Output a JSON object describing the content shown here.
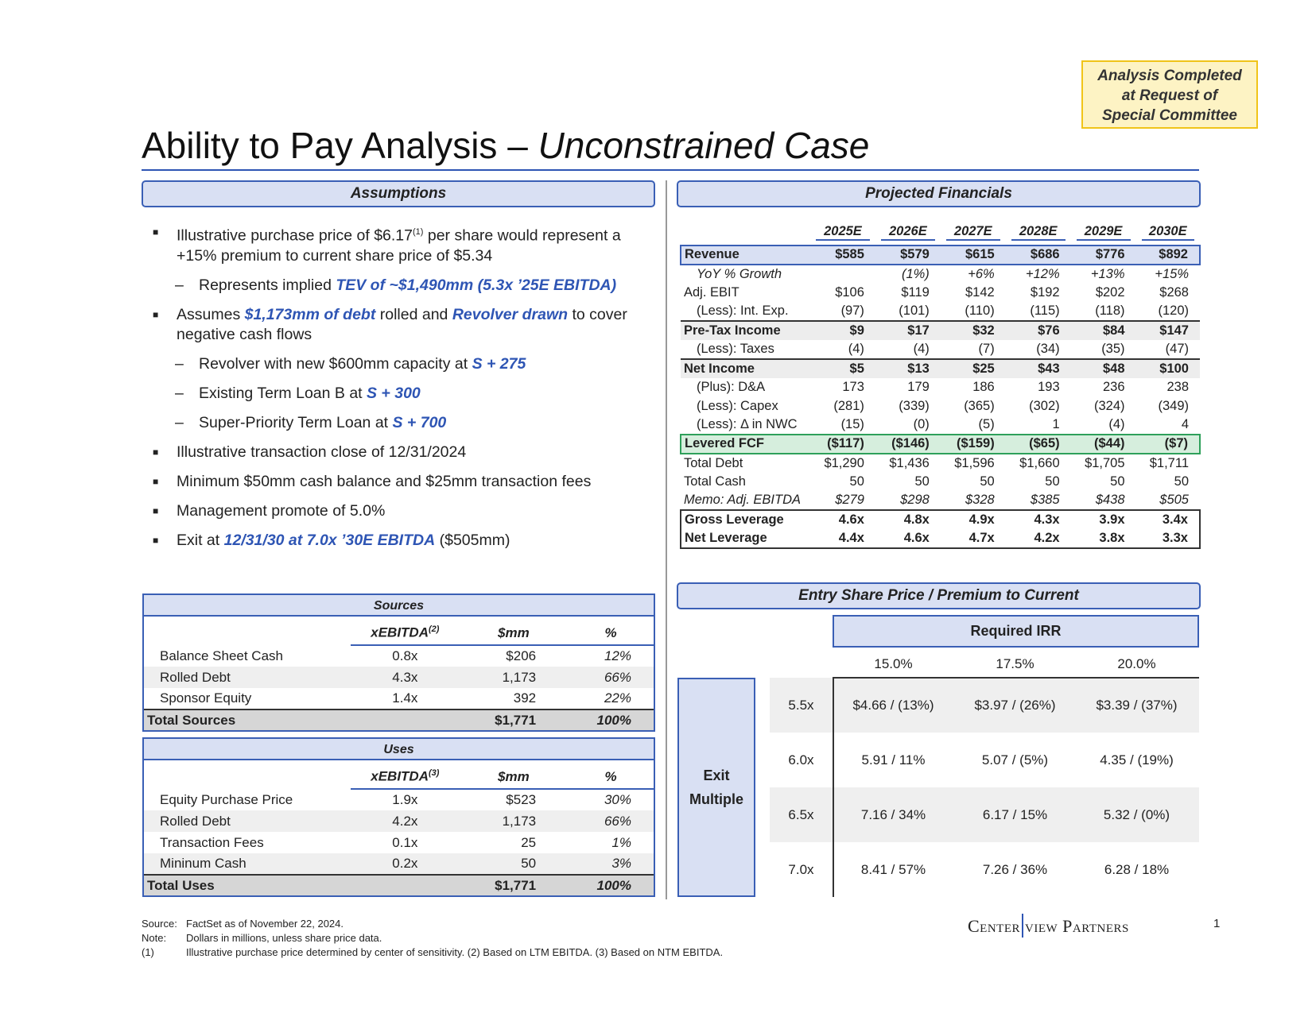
{
  "badge": {
    "line1": "Analysis Completed",
    "line2": "at Request of",
    "line3": "Special Committee"
  },
  "title": {
    "main": "Ability to Pay Analysis – ",
    "italic": "Unconstrained Case"
  },
  "assumptions": {
    "header": "Assumptions",
    "bullets": [
      {
        "level": 1,
        "segs": [
          {
            "t": "Illustrative purchase price of $6.17"
          },
          {
            "t": "(1)",
            "sup": true
          },
          {
            "t": " per share would represent a +15% premium to current share price of $5.34"
          }
        ]
      },
      {
        "level": 2,
        "segs": [
          {
            "t": "Represents implied "
          },
          {
            "t": "TEV of ~$1,490mm (5.3x ’25E EBITDA)",
            "hl": true
          }
        ]
      },
      {
        "level": 1,
        "segs": [
          {
            "t": "Assumes "
          },
          {
            "t": "$1,173mm of debt",
            "hl": true
          },
          {
            "t": " rolled and "
          },
          {
            "t": "Revolver drawn",
            "hl": true
          },
          {
            "t": " to cover negative cash flows"
          }
        ]
      },
      {
        "level": 2,
        "segs": [
          {
            "t": "Revolver with new $600mm capacity at "
          },
          {
            "t": "S + 275",
            "hl": true
          }
        ]
      },
      {
        "level": 2,
        "segs": [
          {
            "t": "Existing Term Loan B at "
          },
          {
            "t": "S + 300",
            "hl": true
          }
        ]
      },
      {
        "level": 2,
        "segs": [
          {
            "t": "Super-Priority Term Loan at "
          },
          {
            "t": "S + 700",
            "hl": true
          }
        ]
      },
      {
        "level": 1,
        "segs": [
          {
            "t": "Illustrative transaction close of 12/31/2024"
          }
        ]
      },
      {
        "level": 1,
        "segs": [
          {
            "t": "Minimum $50mm cash balance and $25mm transaction fees"
          }
        ]
      },
      {
        "level": 1,
        "segs": [
          {
            "t": "Management promote of 5.0%"
          }
        ]
      },
      {
        "level": 1,
        "segs": [
          {
            "t": "Exit at "
          },
          {
            "t": "12/31/30 at 7.0x ’30E EBITDA",
            "hl": true
          },
          {
            "t": " ($505mm)"
          }
        ]
      }
    ]
  },
  "sources": {
    "caption": "Sources",
    "col1": "xEBITDA",
    "col1_note": "(2)",
    "col2": "$mm",
    "col3": "%",
    "rows": [
      [
        "Balance Sheet Cash",
        "0.8x",
        "$206",
        "12%"
      ],
      [
        "Rolled Debt",
        "4.3x",
        "1,173",
        "66%"
      ],
      [
        "Sponsor Equity",
        "1.4x",
        "392",
        "22%"
      ]
    ],
    "total": [
      "Total Sources",
      "",
      "$1,771",
      "100%"
    ]
  },
  "uses": {
    "caption": "Uses",
    "col1": "xEBITDA",
    "col1_note": "(3)",
    "col2": "$mm",
    "col3": "%",
    "rows": [
      [
        "Equity Purchase Price",
        "1.9x",
        "$523",
        "30%"
      ],
      [
        "Rolled Debt",
        "4.2x",
        "1,173",
        "66%"
      ],
      [
        "Transaction Fees",
        "0.1x",
        "25",
        "1%"
      ],
      [
        "Mininum Cash",
        "0.2x",
        "50",
        "3%"
      ]
    ],
    "total": [
      "Total Uses",
      "",
      "$1,771",
      "100%"
    ]
  },
  "projected": {
    "header": "Projected Financials",
    "years": [
      "2025E",
      "2026E",
      "2027E",
      "2028E",
      "2029E",
      "2030E"
    ],
    "rows": [
      {
        "style": "rev",
        "label": "Revenue",
        "v": [
          "$585",
          "$579",
          "$615",
          "$686",
          "$776",
          "$892"
        ]
      },
      {
        "style": "it ind",
        "label": "YoY % Growth",
        "v": [
          "",
          "(1%)",
          "+6%",
          "+12%",
          "+13%",
          "+15%"
        ]
      },
      {
        "style": "",
        "label": "Adj. EBIT",
        "v": [
          "$106",
          "$119",
          "$142",
          "$192",
          "$202",
          "$268"
        ]
      },
      {
        "style": "ind",
        "label": "(Less): Int. Exp.",
        "v": [
          "(97)",
          "(101)",
          "(110)",
          "(115)",
          "(118)",
          "(120)"
        ]
      },
      {
        "style": "gry",
        "label": "Pre-Tax Income",
        "v": [
          "$9",
          "$17",
          "$32",
          "$76",
          "$84",
          "$147"
        ]
      },
      {
        "style": "ind",
        "label": "(Less): Taxes",
        "v": [
          "(4)",
          "(4)",
          "(7)",
          "(34)",
          "(35)",
          "(47)"
        ]
      },
      {
        "style": "gry",
        "label": "Net Income",
        "v": [
          "$5",
          "$13",
          "$25",
          "$43",
          "$48",
          "$100"
        ]
      },
      {
        "style": "ind",
        "label": "(Plus): D&A",
        "v": [
          "173",
          "179",
          "186",
          "193",
          "236",
          "238"
        ]
      },
      {
        "style": "ind",
        "label": "(Less): Capex",
        "v": [
          "(281)",
          "(339)",
          "(365)",
          "(302)",
          "(324)",
          "(349)"
        ]
      },
      {
        "style": "ind",
        "label": "(Less): Δ in NWC",
        "v": [
          "(15)",
          "(0)",
          "(5)",
          "1",
          "(4)",
          "4"
        ]
      },
      {
        "style": "fcf",
        "label": "Levered FCF",
        "v": [
          "($117)",
          "($146)",
          "($159)",
          "($65)",
          "($44)",
          "($7)"
        ]
      },
      {
        "style": "",
        "label": "Total Debt",
        "v": [
          "$1,290",
          "$1,436",
          "$1,596",
          "$1,660",
          "$1,705",
          "$1,711"
        ]
      },
      {
        "style": "",
        "label": "Total Cash",
        "v": [
          "50",
          "50",
          "50",
          "50",
          "50",
          "50"
        ]
      },
      {
        "style": "it",
        "label": "Memo: Adj. EBITDA",
        "v": [
          "$279",
          "$298",
          "$328",
          "$385",
          "$438",
          "$505"
        ]
      },
      {
        "style": "lev lev1",
        "label": "Gross Leverage",
        "v": [
          "4.6x",
          "4.8x",
          "4.9x",
          "4.3x",
          "3.9x",
          "3.4x"
        ]
      },
      {
        "style": "lev lev2",
        "label": "Net Leverage",
        "v": [
          "4.4x",
          "4.6x",
          "4.7x",
          "4.2x",
          "3.8x",
          "3.3x"
        ]
      }
    ]
  },
  "sensitivity": {
    "header": "Entry Share Price / Premium to Current",
    "col_title": "Required IRR",
    "cols": [
      "15.0%",
      "17.5%",
      "20.0%"
    ],
    "row_title_1": "Exit",
    "row_title_2": "Multiple",
    "rows": [
      {
        "label": "5.5x",
        "v": [
          "$4.66 / (13%)",
          "$3.97 / (26%)",
          "$3.39 / (37%)"
        ]
      },
      {
        "label": "6.0x",
        "v": [
          "5.91 / 11%",
          "5.07 / (5%)",
          "4.35 / (19%)"
        ]
      },
      {
        "label": "6.5x",
        "v": [
          "7.16 / 34%",
          "6.17 / 15%",
          "5.32 / (0%)"
        ]
      },
      {
        "label": "7.0x",
        "v": [
          "8.41 / 57%",
          "7.26 / 36%",
          "6.28 / 18%"
        ]
      }
    ]
  },
  "footer": {
    "source_key": "Source:",
    "source": "FactSet as of November 22, 2024.",
    "note_key": "Note:",
    "note": "Dollars in millions, unless share price data.",
    "fn_key": "(1)",
    "fn": "Illustrative purchase price determined by center of sensitivity. (2) Based on LTM EBITDA. (3) Based on NTM EBITDA."
  },
  "logo": {
    "left": "Center",
    "right": "view Partners"
  },
  "page_number": "1",
  "colors": {
    "accent": "#2e55b4",
    "header_fill": "#d9e0f3",
    "fcf_fill": "#d6eedd",
    "fcf_border": "#2ea05a",
    "badge_fill": "#fdf3c4",
    "badge_border": "#f0c419"
  }
}
